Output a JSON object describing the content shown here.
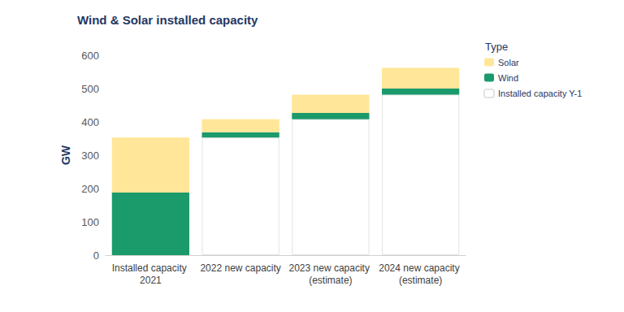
{
  "chart_data": {
    "type": "bar",
    "title": "Wind & Solar installed capacity",
    "y_label": "GW",
    "legend_title": "Type",
    "categories": [
      "Installed capacity 2021",
      "2022 new capacity",
      "2023 new capacity (estimate)",
      "2024 new capacity (estimate)"
    ],
    "series": [
      {
        "name": "Solar",
        "color": "#ffe699",
        "values": [
          165,
          39,
          55,
          62
        ]
      },
      {
        "name": "Wind",
        "color": "#1b9a6c",
        "values": [
          188,
          16,
          19,
          18
        ]
      },
      {
        "name": "Installed capacity Y-1",
        "color": "#ffffff",
        "values": [
          null,
          353,
          408,
          482
        ]
      }
    ],
    "stacked": true,
    "ylim": [
      0,
      600
    ],
    "yticks": [
      0,
      100,
      200,
      300,
      400,
      500,
      600
    ],
    "grid": false,
    "legend": "upper right"
  }
}
